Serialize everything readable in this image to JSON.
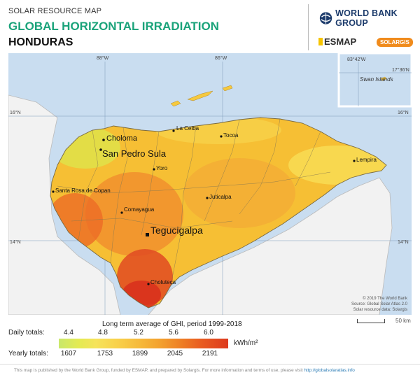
{
  "header": {
    "kicker": "SOLAR RESOURCE MAP",
    "title": "GLOBAL HORIZONTAL IRRADIATION",
    "country": "HONDURAS"
  },
  "logos": {
    "worldbank": "WORLD BANK GROUP",
    "esmap": "ESMAP",
    "solargis": "SOLARGIS"
  },
  "map": {
    "graticule": {
      "lon_88": "88°W",
      "lon_86": "86°W",
      "lat_16_left": "16°N",
      "lat_16_right": "16°N",
      "lat_14_left": "14°N",
      "lat_14_right": "14°N"
    },
    "inset": {
      "lon": "83°42'W",
      "lat": "17°36'N",
      "label": "Swan Islands"
    },
    "cities": {
      "choloma": "Choloma",
      "la_ceiba": "La Ceiba",
      "tocoa": "Tocoa",
      "san_pedro_sula": "San Pedro Sula",
      "yoro": "Yoro",
      "lempira": "Lempira",
      "santa_rosa": "Santa Rosa de Copan",
      "juticalpa": "Juticalpa",
      "comayagua": "Comayagua",
      "tegucigalpa": "Tegucigalpa",
      "choluteca": "Choluteca"
    },
    "credits": {
      "line1": "© 2019 The World Bank",
      "line2": "Source: Global Solar Atlas 2.0",
      "line3": "Solar resource data: Solargis"
    },
    "scale_label": "50 km",
    "colors": {
      "sea": "#c9ddf0",
      "land_neighbors": "#f2f2f2",
      "honduras_base": "#f6bf34"
    }
  },
  "legend": {
    "title": "Long term average of GHI, period 1999-2018",
    "daily_label": "Daily totals:",
    "daily_values": [
      "4.4",
      "4.8",
      "5.2",
      "5.6",
      "6.0"
    ],
    "yearly_label": "Yearly totals:",
    "yearly_values": [
      "1607",
      "1753",
      "1899",
      "2045",
      "2191"
    ],
    "units": "kWh/m²"
  },
  "footer": {
    "text": "This map is published by the World Bank Group, funded by ESMAP, and prepared by Solargis. For more information and terms of use, please visit",
    "link": "http://globalsolaratlas.info"
  }
}
